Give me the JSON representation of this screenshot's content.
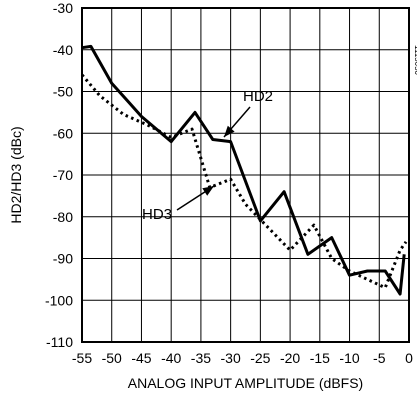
{
  "chart_data": {
    "type": "line",
    "title": "",
    "xlabel": "ANALOG INPUT AMPLITUDE (dBFS)",
    "ylabel": "HD2/HD3 (dBc)",
    "xlim": [
      -55,
      0
    ],
    "ylim": [
      -110,
      -30
    ],
    "x_ticks": [
      -55,
      -50,
      -45,
      -40,
      -35,
      -30,
      -25,
      -20,
      -15,
      -10,
      -5,
      0
    ],
    "y_ticks": [
      -30,
      -40,
      -50,
      -60,
      -70,
      -80,
      -90,
      -100,
      -110
    ],
    "grid": true,
    "series": [
      {
        "name": "HD2",
        "style": "solid",
        "color": "#000000",
        "points": [
          [
            -55,
            -39.5
          ],
          [
            -53.5,
            -39.2
          ],
          [
            -50,
            -48
          ],
          [
            -45,
            -56
          ],
          [
            -40,
            -62
          ],
          [
            -36,
            -55
          ],
          [
            -33,
            -61.5
          ],
          [
            -30,
            -62
          ],
          [
            -25,
            -81
          ],
          [
            -21,
            -74
          ],
          [
            -17,
            -89
          ],
          [
            -13,
            -85
          ],
          [
            -10,
            -94
          ],
          [
            -7,
            -93
          ],
          [
            -4,
            -93
          ],
          [
            -1.5,
            -98.5
          ],
          [
            -0.8,
            -89
          ]
        ]
      },
      {
        "name": "HD3",
        "style": "dotted",
        "color": "#000000",
        "points": [
          [
            -55,
            -46
          ],
          [
            -52,
            -51
          ],
          [
            -48,
            -55.5
          ],
          [
            -44,
            -58
          ],
          [
            -40,
            -61
          ],
          [
            -36.5,
            -59
          ],
          [
            -33.5,
            -73
          ],
          [
            -30,
            -71
          ],
          [
            -27.5,
            -77
          ],
          [
            -20,
            -88
          ],
          [
            -16,
            -82
          ],
          [
            -13,
            -90
          ],
          [
            -10,
            -93
          ],
          [
            -7,
            -95
          ],
          [
            -4,
            -97
          ],
          [
            -1.5,
            -88
          ],
          [
            -0.5,
            -86
          ]
        ]
      }
    ],
    "annotations": [
      {
        "text": "HD2",
        "series": "HD2"
      },
      {
        "text": "HD3",
        "series": "HD3"
      }
    ],
    "side_code": "1115050"
  }
}
